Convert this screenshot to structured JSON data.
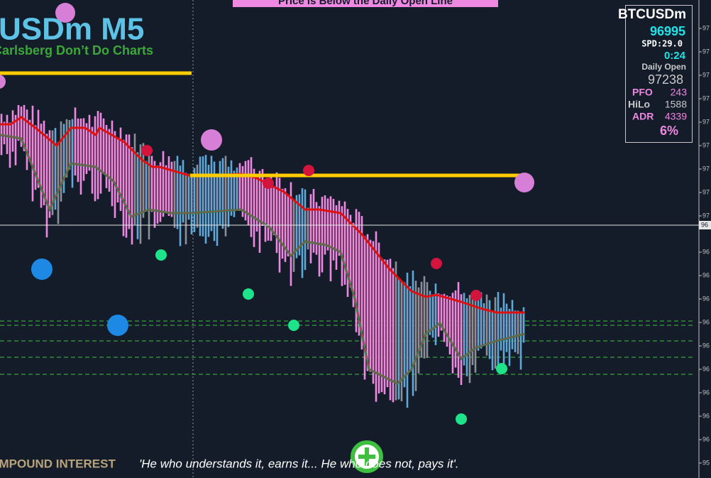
{
  "banner": "Price is Below the Daily Open Line",
  "header": {
    "title": "USDm M5",
    "subtitle": "Carlsberg Don’t Do Charts"
  },
  "info_panel": {
    "symbol": "BTCUSDm",
    "price": "96995",
    "spread": "SPD:29.0",
    "timer": "0:24",
    "daily_open_label": "Daily Open",
    "daily_open": "97238",
    "pfo_label": "PFO",
    "pfo": "243",
    "hilo_label": "HiLo",
    "hilo": "1588",
    "adr_label": "ADR",
    "adr": "4339",
    "adr_pct": "6%"
  },
  "price_axis": {
    "labels": [
      "97",
      "97",
      "97",
      "97",
      "97",
      "97",
      "97",
      "97",
      "97",
      "96",
      "96",
      "96",
      "96",
      "96",
      "96",
      "96",
      "96",
      "96",
      "95",
      "95"
    ],
    "current": "96"
  },
  "footer": {
    "label": "COMPOUND INTEREST",
    "quote": "'He who understands it, earns it... He who does not, pays it'."
  }
}
